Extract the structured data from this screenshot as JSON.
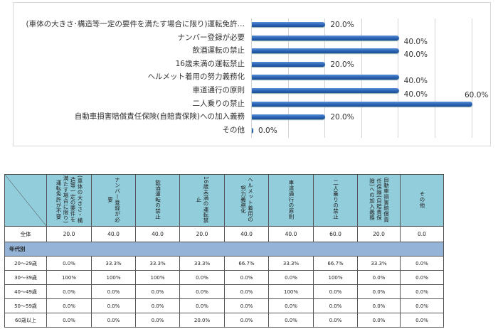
{
  "chart_data": {
    "type": "bar",
    "orientation": "horizontal",
    "title": "",
    "xlabel": "",
    "ylabel": "",
    "xlim": [
      0,
      60
    ],
    "grid": true,
    "categories": [
      "(車体の大きさ･構造等一定の要件を満たす場合に限り)運転免許…",
      "ナンバー登録が必要",
      "飲酒運転の禁止",
      "16歳未満の運転禁止",
      "ヘルメット着用の努力義務化",
      "車道通行の原則",
      "二人乗りの禁止",
      "自動車損害賠償責任保険(自賠責保険)への加入義務",
      "その他"
    ],
    "values": [
      20.0,
      40.0,
      40.0,
      20.0,
      40.0,
      40.0,
      60.0,
      20.0,
      0.0
    ],
    "value_labels": [
      "20.0%",
      "40.0%",
      "40.0%",
      "20.0%",
      "40.0%",
      "40.0%",
      "60.0%",
      "20.0%",
      "0.0%"
    ],
    "bar_color": "#2a62b4"
  },
  "table": {
    "headers": [
      "(車体の大きさ・構造等一定の要件を満たす場合に限り)運転免許が不要",
      "ナンバー登録が必要",
      "飲酒運転の禁止",
      "16歳未満の運転禁止",
      "ヘルメット着用の努力義務化",
      "車道通行の原則",
      "二人乗りの禁止",
      "自動車損害賠償責任保険(自賠責保険)への加入義務",
      "その他"
    ],
    "total": {
      "label": "全体",
      "values": [
        "20.0",
        "40.0",
        "40.0",
        "20.0",
        "40.0",
        "40.0",
        "60.0",
        "20.0",
        "0.0"
      ]
    },
    "section_label": "年代別",
    "rows": [
      {
        "label": "20～29歳",
        "values": [
          "0.0%",
          "33.3%",
          "33.3%",
          "33.3%",
          "66.7%",
          "33.3%",
          "66.7%",
          "33.3%",
          "0.0%"
        ]
      },
      {
        "label": "30～39歳",
        "values": [
          "100%",
          "100%",
          "100%",
          "0.0%",
          "0.0%",
          "0.0%",
          "100%",
          "0.0%",
          "0.0%"
        ]
      },
      {
        "label": "40～49歳",
        "values": [
          "0.0%",
          "0.0%",
          "0.0%",
          "0.0%",
          "0.0%",
          "100%",
          "0.0%",
          "0.0%",
          "0.0%"
        ]
      },
      {
        "label": "50～59歳",
        "values": [
          "0.0%",
          "0.0%",
          "0.0%",
          "0.0%",
          "0.0%",
          "0.0%",
          "0.0%",
          "0.0%",
          "0.0%"
        ]
      },
      {
        "label": "60歳以上",
        "values": [
          "0.0%",
          "0.0%",
          "0.0%",
          "20.0%",
          "0.0%",
          "0.0%",
          "0.0%",
          "0.0%",
          "0.0%"
        ]
      }
    ]
  }
}
